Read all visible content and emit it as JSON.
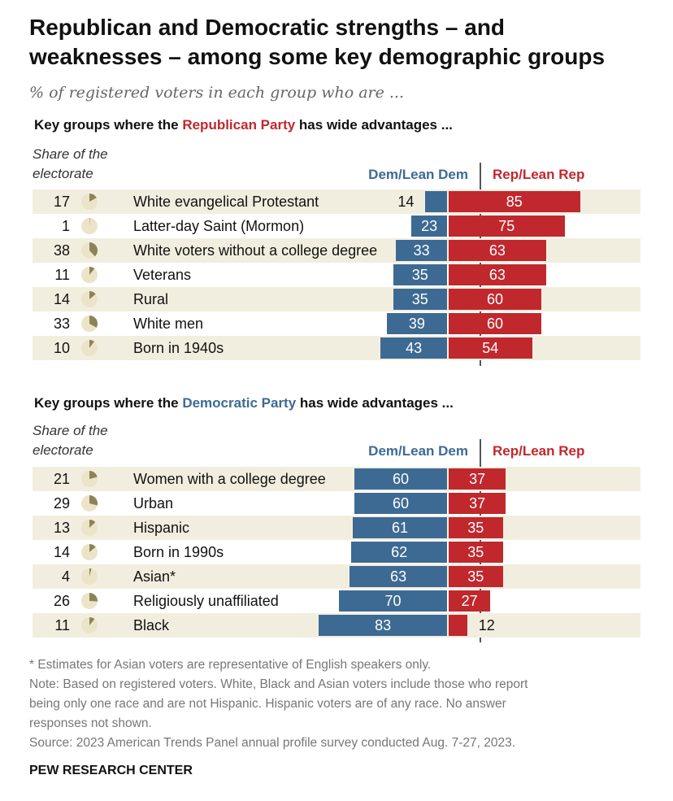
{
  "title_line1": "Republican and Democratic strengths – and",
  "title_line2": "weaknesses – among some key demographic groups",
  "subtitle": "% of registered voters in each group who are ...",
  "colors": {
    "dem": "#3d6a93",
    "rep": "#c0282d",
    "pie_fill": "#8c8458",
    "pie_bg": "#ebe4c8",
    "row_shade": "#f2eedf"
  },
  "chart_data": [
    {
      "type": "bar",
      "heading_prefix": "Key groups where the ",
      "heading_party": "Republican Party",
      "heading_suffix": " has wide advantages ...",
      "share_header_line1": "Share of the",
      "share_header_line2": "electorate",
      "dem_header": "Dem/Lean Dem",
      "rep_header": "Rep/Lean Rep",
      "categories": [
        "White evangelical Protestant",
        "Latter-day Saint (Mormon)",
        "White voters without a college degree",
        "Veterans",
        "Rural",
        "White men",
        "Born in 1940s"
      ],
      "share_of_electorate": [
        17,
        1,
        38,
        11,
        14,
        33,
        10
      ],
      "series": [
        {
          "name": "Dem/Lean Dem",
          "values": [
            14,
            23,
            33,
            35,
            35,
            39,
            43
          ]
        },
        {
          "name": "Rep/Lean Rep",
          "values": [
            85,
            75,
            63,
            63,
            60,
            60,
            54
          ]
        }
      ]
    },
    {
      "type": "bar",
      "heading_prefix": "Key groups where the ",
      "heading_party": "Democratic Party",
      "heading_suffix": " has wide advantages ...",
      "share_header_line1": "Share of the",
      "share_header_line2": "electorate",
      "dem_header": "Dem/Lean Dem",
      "rep_header": "Rep/Lean Rep",
      "categories": [
        "Women with a college degree",
        "Urban",
        "Hispanic",
        "Born in 1990s",
        "Asian*",
        "Religiously unaffiliated",
        "Black"
      ],
      "share_of_electorate": [
        21,
        29,
        13,
        14,
        4,
        26,
        11
      ],
      "series": [
        {
          "name": "Dem/Lean Dem",
          "values": [
            60,
            60,
            61,
            62,
            63,
            70,
            83
          ]
        },
        {
          "name": "Rep/Lean Rep",
          "values": [
            37,
            37,
            35,
            35,
            35,
            27,
            12
          ]
        }
      ]
    }
  ],
  "notes": [
    "* Estimates for Asian voters are representative of English speakers only.",
    "Note: Based on registered voters. White, Black and Asian voters include those who report",
    "being only one race and are not Hispanic. Hispanic voters are of any race. No answer",
    "responses not shown.",
    "Source: 2023 American Trends Panel annual profile survey conducted Aug. 7-27, 2023."
  ],
  "brand": "PEW RESEARCH CENTER"
}
